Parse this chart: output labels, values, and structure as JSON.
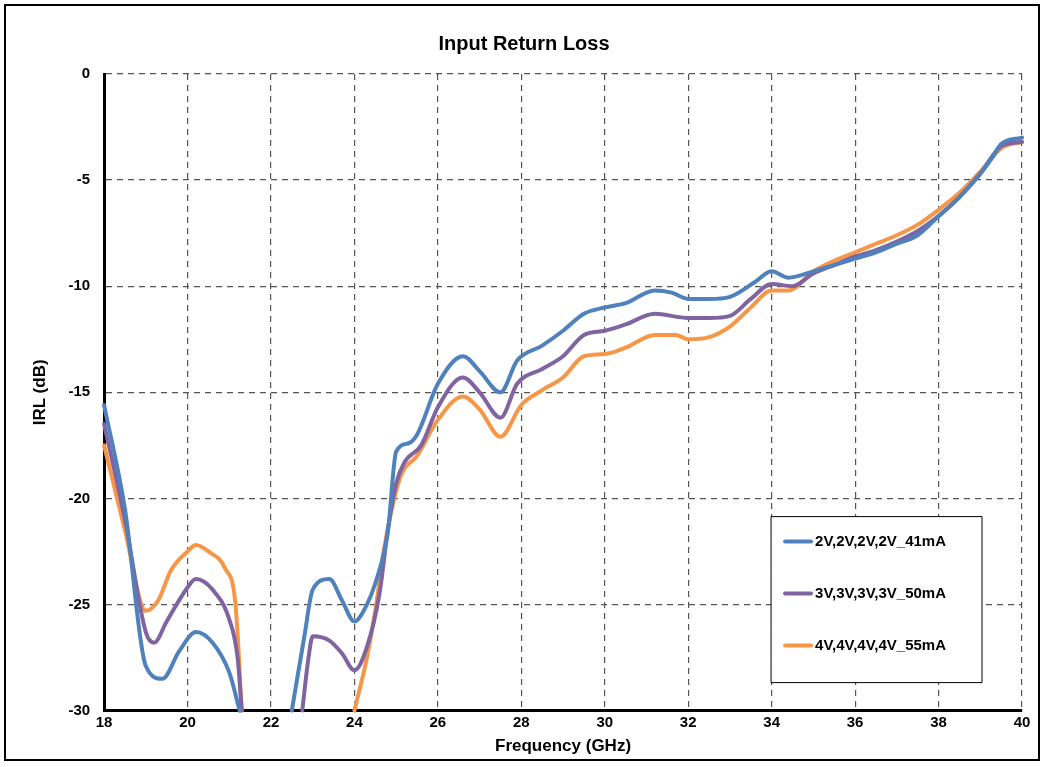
{
  "chart_data": {
    "type": "line",
    "title": "Input Return Loss",
    "xlabel": "Frequency (GHz)",
    "ylabel": "IRL (dB)",
    "xlim": [
      18,
      40
    ],
    "xticks": [
      18,
      20,
      22,
      24,
      26,
      28,
      30,
      32,
      34,
      36,
      38,
      40
    ],
    "ylim": [
      -30,
      0
    ],
    "yticks": [
      -30,
      -25,
      -20,
      -15,
      -10,
      -5,
      0
    ],
    "grid": true,
    "legend": "bottom right",
    "marker": "none",
    "line_style": "solid",
    "series": [
      {
        "name": "2V,2V,2V,2V_41mA",
        "color": "#4f81bd",
        "x": [
          18,
          18.5,
          19,
          19.4,
          19.8,
          20.2,
          20.6,
          21,
          21.25,
          21.7,
          22.5,
          22.8,
          23,
          23.4,
          23.7,
          24,
          24.3,
          24.5,
          24.8,
          25,
          25.3,
          25.5,
          26,
          26.6,
          27,
          27.5,
          27.9,
          28.5,
          29,
          29.5,
          30,
          30.5,
          31.2,
          31.6,
          32,
          32.5,
          33,
          33.6,
          34,
          34.4,
          35,
          35.5,
          36,
          36.5,
          37,
          37.5,
          38,
          38.5,
          39,
          39.3,
          39.5,
          40
        ],
        "values": [
          -15.6,
          -20.5,
          -27.9,
          -28.5,
          -27.2,
          -26.3,
          -26.8,
          -28.2,
          -30,
          null,
          -30,
          -26.5,
          -24.3,
          -23.8,
          -24.8,
          -25.8,
          -25,
          -24,
          -21.6,
          -17.8,
          -17.4,
          -17,
          -14.6,
          -13.3,
          -14,
          -15,
          -13.5,
          -12.8,
          -12.1,
          -11.3,
          -11,
          -10.8,
          -10.2,
          -10.3,
          -10.6,
          -10.6,
          -10.5,
          -9.8,
          -9.3,
          -9.6,
          -9.3,
          -9,
          -8.7,
          -8.4,
          -8,
          -7.6,
          -6.7,
          -5.8,
          -4.7,
          -3.9,
          -3.3,
          -3
        ]
      },
      {
        "name": "3V,3V,3V,3V_50mA",
        "color": "#8064a2",
        "x": [
          18,
          18.5,
          19,
          19.2,
          19.5,
          20,
          20.2,
          20.6,
          21,
          21.2,
          21.3,
          22,
          22.75,
          22.9,
          23,
          23.4,
          23.7,
          24,
          24.3,
          24.6,
          24.8,
          25,
          25.2,
          25.6,
          26,
          26.6,
          27,
          27.5,
          27.9,
          28.5,
          29,
          29.5,
          30,
          30.5,
          31.2,
          32,
          32.5,
          33,
          33.5,
          34,
          34.5,
          35,
          35.5,
          36,
          36.5,
          37,
          37.5,
          38,
          38.5,
          39,
          39.5,
          40
        ],
        "values": [
          -16.5,
          -21,
          -26.3,
          -26.8,
          -25.8,
          -24.2,
          -23.8,
          -24.3,
          -25.7,
          -27.5,
          -30,
          null,
          -30,
          -27.5,
          -26.5,
          -26.7,
          -27.3,
          -28.1,
          -27,
          -24.5,
          -21.5,
          -19.3,
          -18.3,
          -17.5,
          -15.7,
          -14.3,
          -15,
          -16.2,
          -14.6,
          -13.9,
          -13.3,
          -12.3,
          -12.1,
          -11.8,
          -11.3,
          -11.5,
          -11.5,
          -11.4,
          -10.6,
          -9.9,
          -10,
          -9.4,
          -9,
          -8.6,
          -8.3,
          -7.9,
          -7.4,
          -6.7,
          -5.8,
          -4.7,
          -3.4,
          -3.2
        ]
      },
      {
        "name": "4V,4V,4V,4V_55mA",
        "color": "#f79646",
        "x": [
          18,
          18.5,
          19,
          19.3,
          19.6,
          20,
          20.2,
          20.5,
          20.9,
          21.15,
          21.3,
          22.5,
          24,
          24.3,
          24.5,
          24.7,
          25.1,
          25.5,
          26,
          26.6,
          27,
          27.5,
          28,
          28.5,
          29,
          29.5,
          30,
          30.5,
          31.2,
          31.7,
          32,
          32.5,
          33,
          33.5,
          34,
          34.4,
          35,
          35.5,
          36,
          36.5,
          37,
          37.5,
          38,
          38.5,
          39,
          39.5,
          40
        ],
        "values": [
          -17.5,
          -21.5,
          -25.3,
          -24.8,
          -23.4,
          -22.5,
          -22.2,
          -22.5,
          -23.3,
          -25,
          -30,
          null,
          -30,
          -27.5,
          -25.3,
          -22.5,
          -19,
          -18,
          -16.3,
          -15.2,
          -15.8,
          -17.1,
          -15.6,
          -14.9,
          -14.3,
          -13.3,
          -13.2,
          -12.9,
          -12.3,
          -12.3,
          -12.5,
          -12.4,
          -11.9,
          -11,
          -10.2,
          -10.2,
          -9.3,
          -8.8,
          -8.4,
          -8,
          -7.6,
          -7.1,
          -6.4,
          -5.6,
          -4.6,
          -3.5,
          -3.2
        ]
      }
    ]
  }
}
